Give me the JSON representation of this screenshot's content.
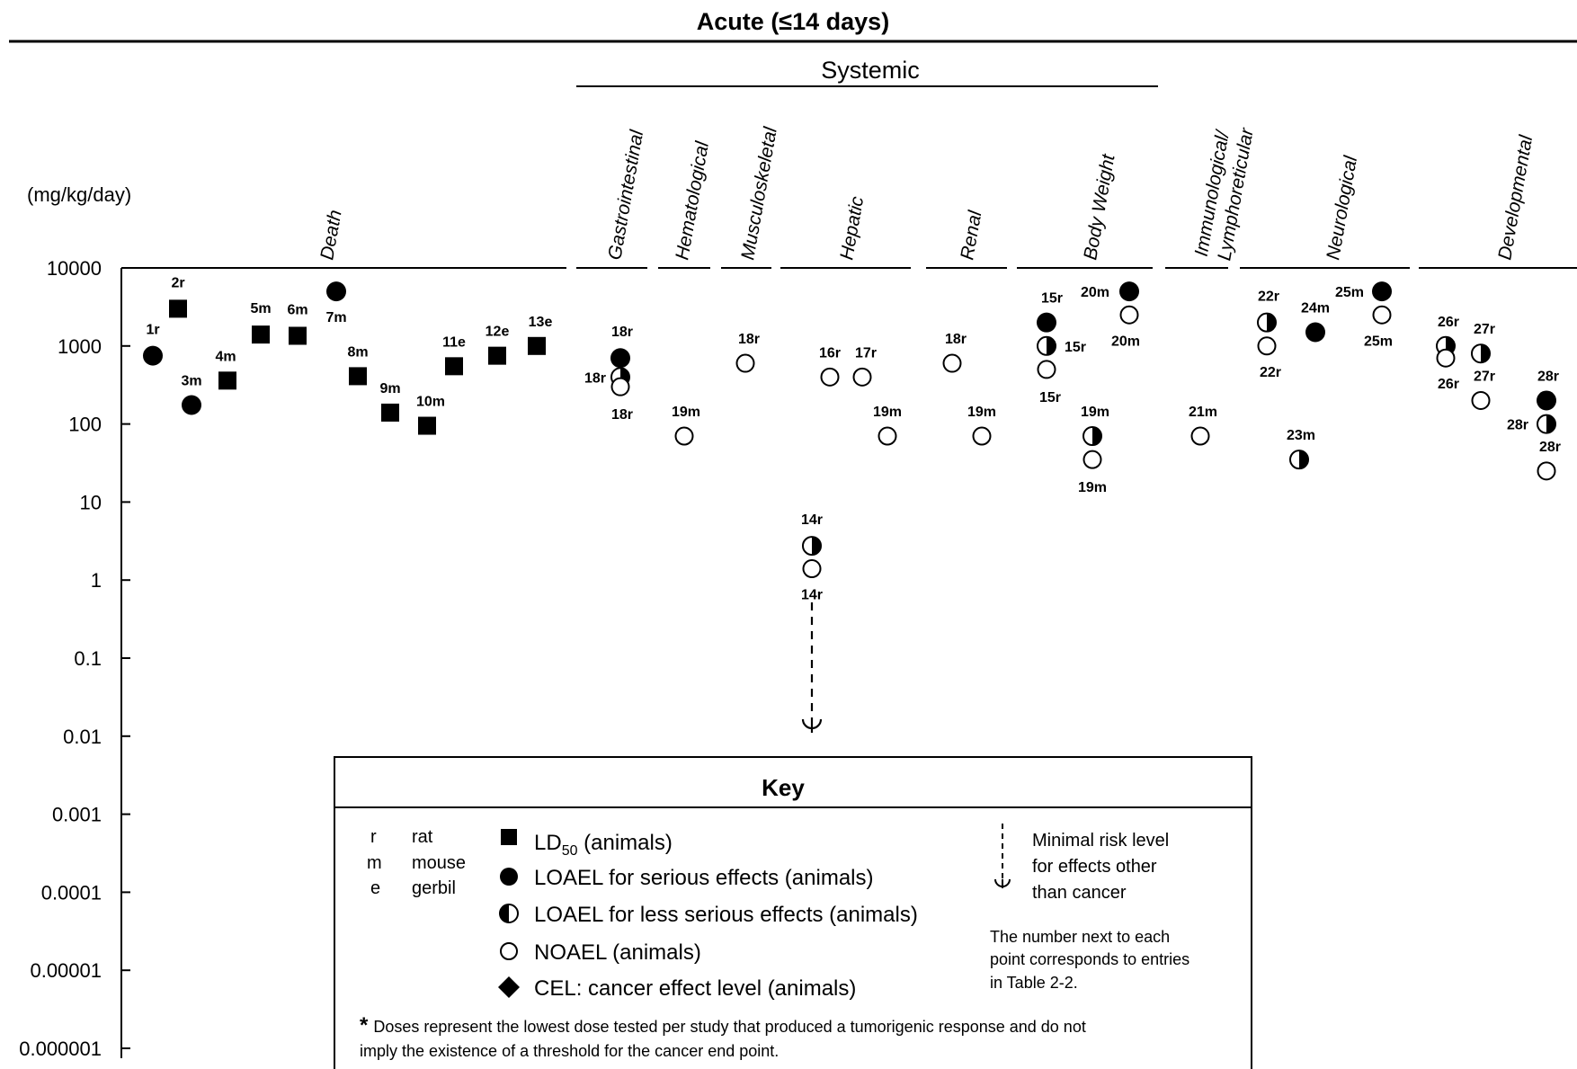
{
  "chart_data": {
    "type": "scatter",
    "title": "Acute (≤14 days)",
    "group_header": "Systemic",
    "ylabel": "(mg/kg/day)",
    "y_scale": "log",
    "ylim": [
      1e-06,
      10000
    ],
    "y_ticks": [
      "10000",
      "1000",
      "100",
      "10",
      "1",
      "0.1",
      "0.01",
      "0.001",
      "0.0001",
      "0.00001",
      "0.000001"
    ],
    "categories": [
      "Death",
      "Gastrointestinal",
      "Hematological",
      "Musculoskeletal",
      "Hepatic",
      "Renal",
      "Body Weight",
      "Immunological/ Lymphoreticular",
      "Neurological",
      "Developmental"
    ],
    "points": [
      {
        "label": "1r",
        "value": 750,
        "marker": "loael-serious"
      },
      {
        "label": "2r",
        "value": 3000,
        "marker": "ld50"
      },
      {
        "label": "3m",
        "value": 175,
        "marker": "loael-serious"
      },
      {
        "label": "4m",
        "value": 360,
        "marker": "ld50"
      },
      {
        "label": "5m",
        "value": 1400,
        "marker": "ld50"
      },
      {
        "label": "6m",
        "value": 1350,
        "marker": "ld50"
      },
      {
        "label": "7m",
        "value": 5000,
        "marker": "loael-serious"
      },
      {
        "label": "8m",
        "value": 410,
        "marker": "ld50"
      },
      {
        "label": "9m",
        "value": 140,
        "marker": "ld50"
      },
      {
        "label": "10m",
        "value": 95,
        "marker": "ld50"
      },
      {
        "label": "11e",
        "value": 550,
        "marker": "ld50"
      },
      {
        "label": "12e",
        "value": 750,
        "marker": "ld50"
      },
      {
        "label": "13e",
        "value": 1000,
        "marker": "ld50"
      },
      {
        "label": "18r",
        "value": 700,
        "marker": "loael-serious"
      },
      {
        "label": "18r",
        "value": 400,
        "marker": "loael-less-serious"
      },
      {
        "label": "18r",
        "value": 300,
        "marker": "noael"
      },
      {
        "label": "19m",
        "value": 70,
        "marker": "noael"
      },
      {
        "label": "18r",
        "value": 600,
        "marker": "noael"
      },
      {
        "label": "14r",
        "value": 2.75,
        "marker": "loael-less-serious"
      },
      {
        "label": "14r",
        "value": 1.4,
        "marker": "noael"
      },
      {
        "label": "16r",
        "value": 400,
        "marker": "noael"
      },
      {
        "label": "17r",
        "value": 400,
        "marker": "noael"
      },
      {
        "label": "19m",
        "value": 70,
        "marker": "noael"
      },
      {
        "label": "18r",
        "value": 600,
        "marker": "noael"
      },
      {
        "label": "19m",
        "value": 70,
        "marker": "noael"
      },
      {
        "label": "15r",
        "value": 2000,
        "marker": "loael-serious"
      },
      {
        "label": "15r",
        "value": 1000,
        "marker": "loael-less-serious"
      },
      {
        "label": "15r",
        "value": 500,
        "marker": "noael"
      },
      {
        "label": "20m",
        "value": 5000,
        "marker": "loael-serious"
      },
      {
        "label": "20m",
        "value": 2500,
        "marker": "noael"
      },
      {
        "label": "19m",
        "value": 70,
        "marker": "loael-less-serious"
      },
      {
        "label": "19m",
        "value": 35,
        "marker": "noael"
      },
      {
        "label": "21m",
        "value": 70,
        "marker": "noael"
      },
      {
        "label": "22r",
        "value": 2000,
        "marker": "loael-less-serious"
      },
      {
        "label": "22r",
        "value": 1000,
        "marker": "noael"
      },
      {
        "label": "24m",
        "value": 1500,
        "marker": "loael-serious"
      },
      {
        "label": "23m",
        "value": 35,
        "marker": "loael-less-serious"
      },
      {
        "label": "25m",
        "value": 5000,
        "marker": "loael-serious"
      },
      {
        "label": "25m",
        "value": 2500,
        "marker": "noael"
      },
      {
        "label": "26r",
        "value": 1000,
        "marker": "loael-less-serious"
      },
      {
        "label": "26r",
        "value": 700,
        "marker": "noael"
      },
      {
        "label": "27r",
        "value": 800,
        "marker": "loael-less-serious"
      },
      {
        "label": "27r",
        "value": 200,
        "marker": "noael"
      },
      {
        "label": "28r",
        "value": 200,
        "marker": "loael-serious"
      },
      {
        "label": "28r",
        "value": 100,
        "marker": "loael-less-serious"
      },
      {
        "label": "28r",
        "value": 25,
        "marker": "noael"
      }
    ],
    "mrl": {
      "value": 0.01,
      "label": "Minimal risk level"
    }
  },
  "key": {
    "title": "Key",
    "species": [
      {
        "code": "r",
        "name": "rat"
      },
      {
        "code": "m",
        "name": "mouse"
      },
      {
        "code": "e",
        "name": "gerbil"
      }
    ],
    "legend_ld50_main": "LD",
    "legend_ld50_sub": "50",
    "legend_ld50_rest": " (animals)",
    "legend_serious": "LOAEL for serious effects (animals)",
    "legend_less": "LOAEL for less serious effects (animals)",
    "legend_noael": "NOAEL (animals)",
    "legend_cel": "CEL: cancer effect level (animals)",
    "mrl_line1": "Minimal risk level",
    "mrl_line2": "for effects other",
    "mrl_line3": "than cancer",
    "note_line1": "The number next to each",
    "note_line2": "point corresponds to entries",
    "note_line3": "in Table 2-2.",
    "footnote_star": "*",
    "footnote_line1": "Doses represent the lowest dose tested per study that produced a tumorigenic response and do not",
    "footnote_line2": "imply the existence of a threshold for the cancer end point."
  }
}
